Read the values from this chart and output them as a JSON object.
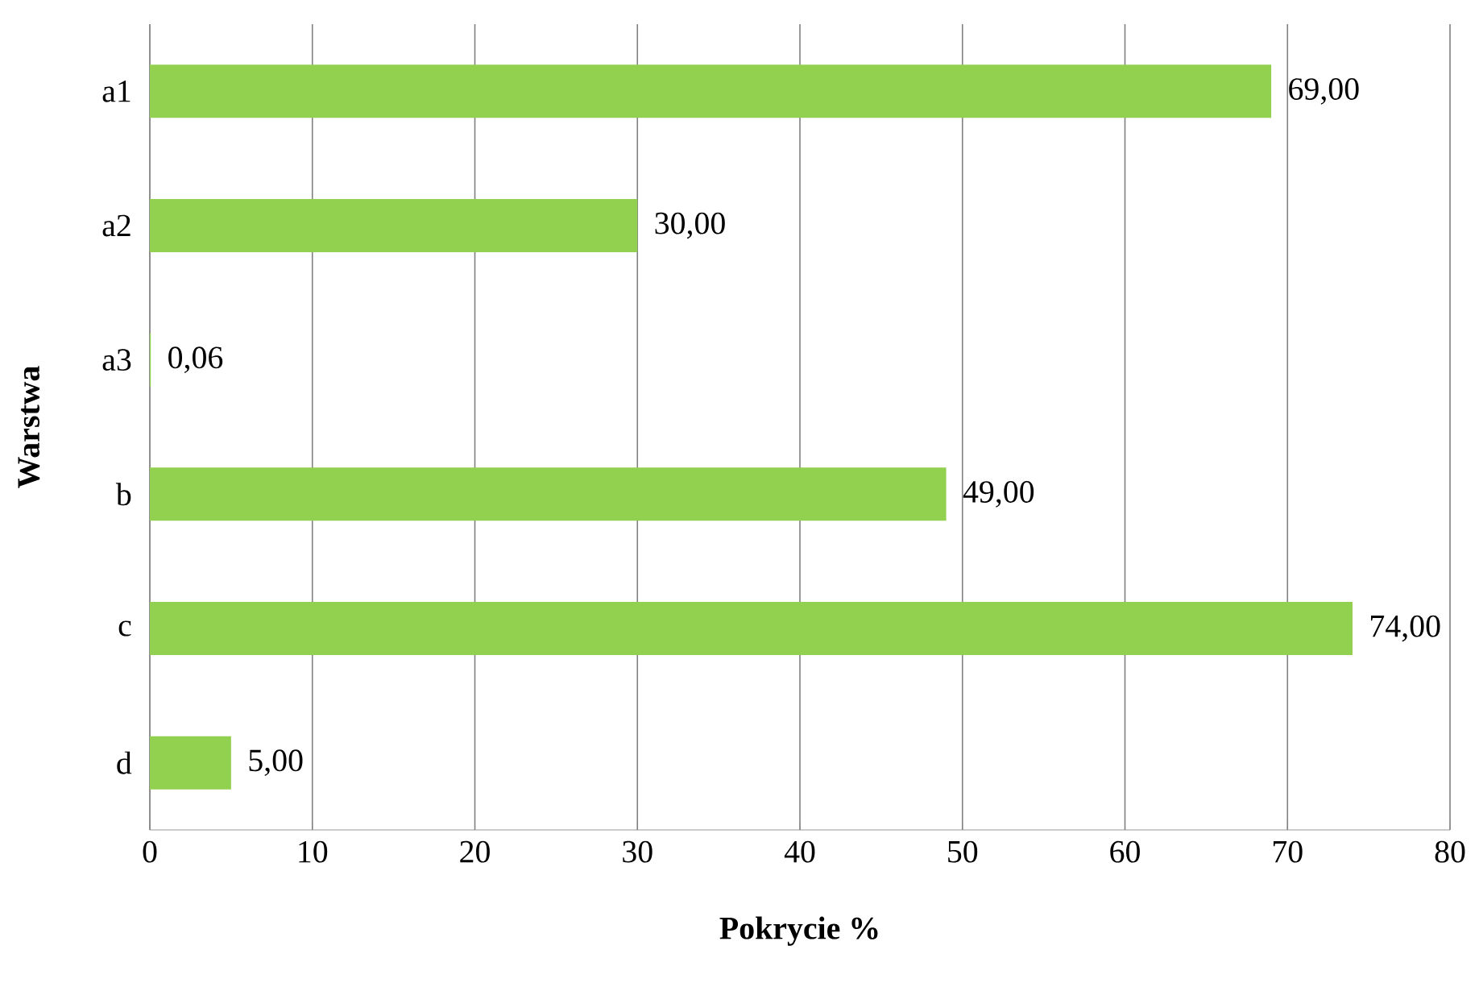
{
  "chart_data": {
    "type": "bar",
    "orientation": "horizontal",
    "xlabel": "Pokrycie %",
    "ylabel": "Warstwa",
    "categories": [
      "a1",
      "a2",
      "a3",
      "b",
      "c",
      "d"
    ],
    "values": [
      69,
      30,
      0.06,
      49,
      74,
      5
    ],
    "value_labels": [
      "69,00",
      "30,00",
      "0,06",
      "49,00",
      "74,00",
      "5,00"
    ],
    "color": "#92d050",
    "xlim": [
      0,
      80
    ],
    "xticks": [
      0,
      10,
      20,
      30,
      40,
      50,
      60,
      70,
      80
    ],
    "grid": "x"
  }
}
